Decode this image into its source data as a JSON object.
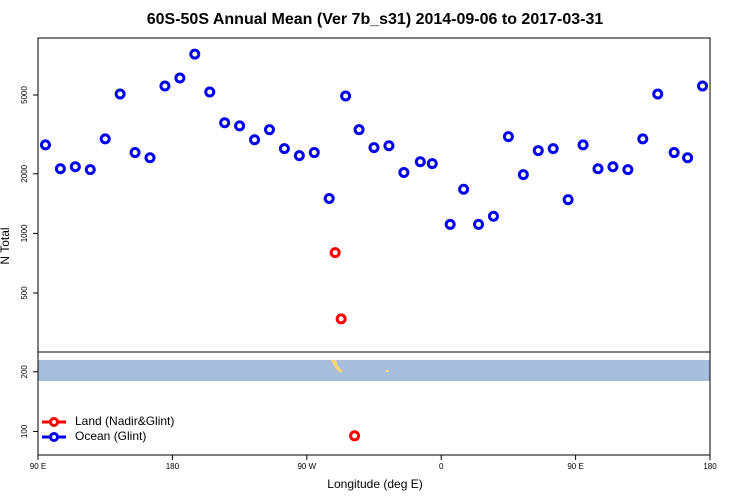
{
  "chart_data": {
    "type": "scatter",
    "title": "60S-50S Annual Mean (Ver 7b_s31)   2014-09-06 to 2017-03-31",
    "x_label": "Longitude (deg E)",
    "y_label": "N Total",
    "log_y": true,
    "legend": "bottom-left",
    "xlim": [
      90,
      540
    ],
    "xticks": [
      {
        "value": 90,
        "label": "90 E"
      },
      180,
      {
        "value": 270,
        "label": "90 W"
      },
      {
        "value": 360,
        "label": "0"
      },
      {
        "value": 450,
        "label": "90 E"
      },
      {
        "value": 540,
        "label": "180"
      }
    ],
    "ylim": [
      76,
      9700
    ],
    "yticks": [
      100,
      200,
      500,
      1000,
      2000,
      5000
    ],
    "series": [
      {
        "name": "Land (Nadir&Glint)",
        "color": "#ff0000",
        "x": [
          289,
          293,
          302
        ],
        "values": [
          800,
          370,
          95
        ]
      },
      {
        "name": "Ocean (Glint)",
        "color": "#0000ee",
        "x": [
          95,
          105,
          115,
          125,
          135,
          145,
          155,
          165,
          175,
          185,
          195,
          205,
          215,
          225,
          235,
          245,
          255,
          265,
          275,
          285,
          296,
          305,
          315,
          325,
          335,
          346,
          354,
          366,
          375,
          385,
          395,
          405,
          415,
          425,
          435,
          445,
          455,
          465,
          475,
          485,
          495,
          505,
          516,
          525,
          535
        ],
        "values": [
          2800,
          2120,
          2170,
          2100,
          3000,
          5060,
          2560,
          2410,
          5550,
          6090,
          8040,
          5180,
          3620,
          3490,
          2970,
          3340,
          2680,
          2470,
          2560,
          1500,
          4940,
          3340,
          2710,
          2770,
          2030,
          2300,
          2250,
          1110,
          1670,
          1110,
          1220,
          3080,
          1980,
          2620,
          2680,
          1480,
          2800,
          2120,
          2170,
          2100,
          3000,
          5060,
          2560,
          2410,
          5550
        ]
      }
    ]
  }
}
